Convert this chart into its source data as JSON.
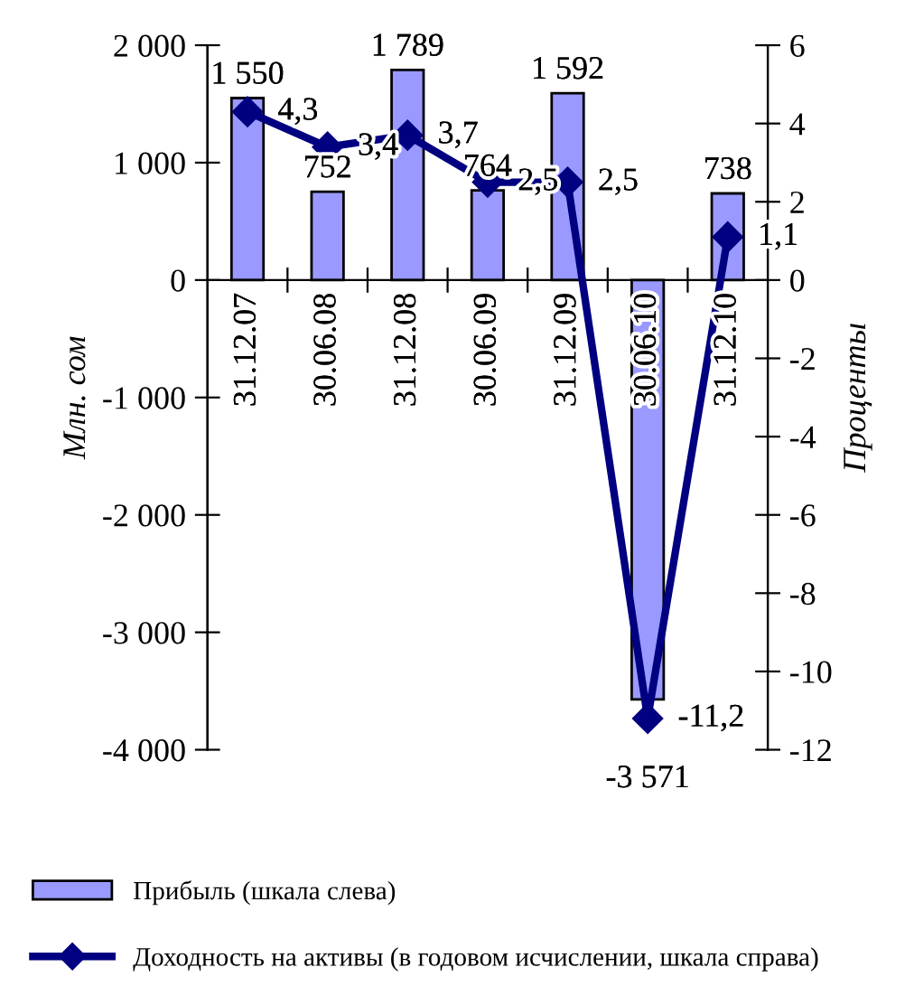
{
  "chart_data": {
    "type": "bar",
    "ylabel": "Млн. сом",
    "y2label": "Проценты",
    "categories": [
      "31.12.07",
      "30.06.08",
      "31.12.08",
      "30.06.09",
      "31.12.09",
      "30.06.10",
      "31.12.10"
    ],
    "series": [
      {
        "name": "Прибыль (шкала слева)",
        "color": "#9999ff",
        "values": [
          1550,
          752,
          1789,
          764,
          1592,
          -3571,
          738
        ],
        "value_labels": [
          "1 550",
          "752",
          "1 789",
          "764",
          "1 592",
          "-3 571",
          "738"
        ]
      },
      {
        "name": "Доходность на активы (в годовом исчислении, шкала справа)",
        "type": "line",
        "axis": "y2",
        "color": "#000080",
        "marker": "diamond",
        "values": [
          4.3,
          3.4,
          3.7,
          2.5,
          2.5,
          -11.2,
          1.1
        ],
        "value_labels": [
          "4,3",
          "3,4",
          "3,7",
          "2,5",
          "2,5",
          "-11,2",
          "1,1"
        ]
      }
    ],
    "ylim": [
      -4000,
      2000
    ],
    "yticks": [
      {
        "value": -4000,
        "label": "-4 000"
      },
      {
        "value": -3000,
        "label": "-3 000"
      },
      {
        "value": -2000,
        "label": "-2 000"
      },
      {
        "value": -1000,
        "label": "-1 000"
      },
      0,
      {
        "value": 1000,
        "label": "1 000"
      },
      {
        "value": 2000,
        "label": "2 000"
      }
    ],
    "y2lim": [
      -12,
      6
    ],
    "y2ticks": [
      -12,
      -10,
      -8,
      -6,
      -4,
      -2,
      0,
      2,
      4,
      6
    ],
    "grid": false,
    "legend": "bottom"
  }
}
